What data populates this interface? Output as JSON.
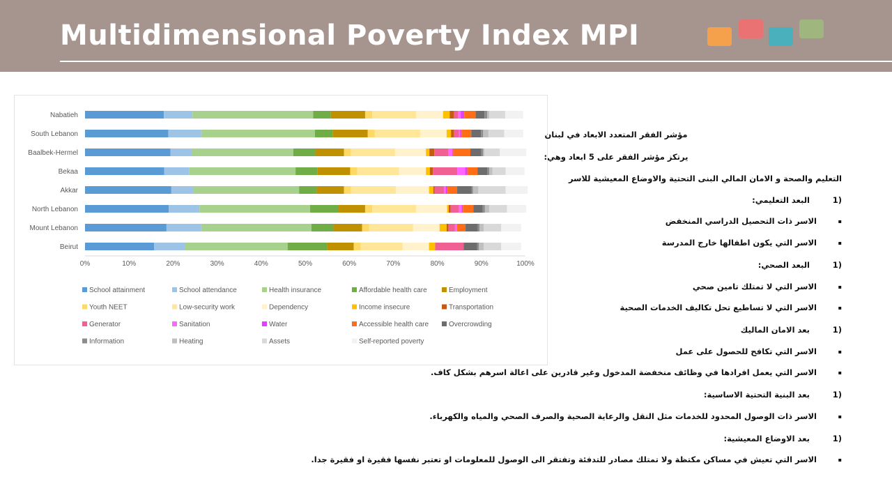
{
  "header": {
    "title": "Multidimensional Poverty Index MPI",
    "squares": [
      "#f5a04a",
      "#ea7273",
      "#49b0bc",
      "#9fb77e"
    ]
  },
  "chart_data": {
    "type": "bar",
    "orientation": "horizontal",
    "stacked": true,
    "categories": [
      "Nabatieh",
      "South Lebanon",
      "Baalbek-Hermel",
      "Bekaa",
      "Akkar",
      "North Lebanon",
      "Mount Lebanon",
      "Beirut"
    ],
    "xlim": [
      0,
      100
    ],
    "xticks": [
      "0%",
      "10%",
      "20%",
      "30%",
      "40%",
      "50%",
      "60%",
      "70%",
      "80%",
      "90%",
      "100%"
    ],
    "grid": false,
    "legend_position": "bottom",
    "series": [
      {
        "name": "School attainment",
        "color": "#5b9bd5",
        "values": [
          17.9,
          18.9,
          19.4,
          18.0,
          19.6,
          19.0,
          18.5,
          15.7
        ]
      },
      {
        "name": "School attendance",
        "color": "#9dc3e6",
        "values": [
          6.5,
          7.5,
          4.8,
          5.6,
          5.0,
          7.0,
          7.9,
          7.0
        ]
      },
      {
        "name": "Health insurance",
        "color": "#a9d18e",
        "values": [
          27.4,
          25.8,
          23.1,
          24.2,
          24.0,
          25.1,
          25.0,
          23.3
        ]
      },
      {
        "name": "Affordable health care",
        "color": "#70ad47",
        "values": [
          4.0,
          4.0,
          5.0,
          5.0,
          4.0,
          6.5,
          5.0,
          9.0
        ]
      },
      {
        "name": "Employment",
        "color": "#bf9000",
        "values": [
          7.8,
          8.0,
          6.5,
          7.4,
          6.2,
          6.0,
          6.5,
          6.0
        ]
      },
      {
        "name": "Youth NEET",
        "color": "#ffd966",
        "values": [
          1.6,
          1.6,
          1.6,
          1.6,
          1.6,
          1.6,
          1.6,
          1.6
        ]
      },
      {
        "name": "Low-security work",
        "color": "#ffe699",
        "values": [
          10.0,
          10.3,
          10.0,
          9.5,
          10.2,
          10.0,
          10.0,
          9.5
        ]
      },
      {
        "name": "Dependency",
        "color": "#fff2cc",
        "values": [
          6.1,
          6.0,
          7.0,
          6.1,
          7.5,
          7.0,
          6.0,
          6.0
        ]
      },
      {
        "name": "Income insecure",
        "color": "#ffc000",
        "values": [
          1.5,
          1.0,
          0.8,
          0.9,
          1.0,
          0.4,
          1.6,
          1.4
        ]
      },
      {
        "name": "Transportation",
        "color": "#c55a11",
        "values": [
          0.9,
          0.6,
          1.1,
          0.7,
          0.3,
          0.4,
          0.4,
          0.0
        ]
      },
      {
        "name": "Generator",
        "color": "#f06092",
        "values": [
          1.0,
          1.2,
          3.2,
          5.5,
          2.1,
          1.9,
          1.5,
          6.5
        ]
      },
      {
        "name": "Sanitation",
        "color": "#ff66ff",
        "values": [
          0.6,
          0.3,
          0.9,
          1.8,
          0.4,
          0.6,
          0.5,
          0.0
        ]
      },
      {
        "name": "Water",
        "color": "#e040fb",
        "values": [
          0.8,
          0.3,
          0.2,
          0.5,
          0.4,
          0.3,
          0.0,
          0.0
        ]
      },
      {
        "name": "Accessible health care",
        "color": "#ff6d17",
        "values": [
          2.6,
          2.2,
          3.9,
          2.3,
          2.2,
          2.4,
          1.9,
          0.0
        ]
      },
      {
        "name": "Overcrowding",
        "color": "#6d6d6d",
        "values": [
          2.0,
          2.2,
          2.5,
          2.2,
          3.3,
          2.1,
          2.8,
          3.0
        ]
      },
      {
        "name": "Information",
        "color": "#8c8c8c",
        "values": [
          0.6,
          0.5,
          0.4,
          0.5,
          0.3,
          0.5,
          0.4,
          0.4
        ]
      },
      {
        "name": "Heating",
        "color": "#bfbfbf",
        "values": [
          0.5,
          1.2,
          0.3,
          0.7,
          1.2,
          1.0,
          0.9,
          1.1
        ]
      },
      {
        "name": "Assets",
        "color": "#d9d9d9",
        "values": [
          3.6,
          3.6,
          3.5,
          3.0,
          6.2,
          4.0,
          4.0,
          4.0
        ]
      },
      {
        "name": "Self-reported poverty",
        "color": "#f2f2f2",
        "values": [
          4.1,
          4.3,
          6.0,
          4.3,
          5.0,
          4.4,
          4.5,
          4.5
        ]
      }
    ]
  },
  "text_panel": {
    "lines": [
      {
        "kind": "center",
        "text": "مؤشر الفقر المتعدد الابعاد في لبنان"
      },
      {
        "kind": "center",
        "text": "يرتكز مؤشر الفقر على 5 ابعاد وهي:"
      },
      {
        "kind": "plain",
        "text": "التعليم والصحة و الامان المالي البنى التحتية والاوضاع المعيشية للاسر"
      },
      {
        "kind": "numbered",
        "marker": "1)",
        "text": "البعد التعليمي:"
      },
      {
        "kind": "bullet",
        "marker": "▪",
        "text": "الاسر ذات التحصيل الدراسي المنخفض"
      },
      {
        "kind": "bullet",
        "marker": "▪",
        "text": "الاسر التي يكون اطفالها خارج المدرسة"
      },
      {
        "kind": "numbered",
        "marker": "1)",
        "text": "البعد الصحي:"
      },
      {
        "kind": "bullet",
        "marker": "▪",
        "text": "الاسر التي لا تمتلك تامين صحي"
      },
      {
        "kind": "bullet",
        "marker": "▪",
        "text": "الاسر التي لا تساطيع تحل تكاليف الخدمات الصحية"
      },
      {
        "kind": "numbered",
        "marker": "1)",
        "text": "بعد الامان الماليك"
      },
      {
        "kind": "bullet",
        "marker": "▪",
        "text": "الاسر التي تكافح للحصول على عمل"
      },
      {
        "kind": "bullet",
        "marker": "▪",
        "text": "الاسر التي يعمل افرادها في وظائف منخفضة المدخول وغير قادرين على اعالة اسرهم بشكل كاف."
      },
      {
        "kind": "numbered",
        "marker": "1)",
        "text": "بعد البنية التحتية الاساسية:"
      },
      {
        "kind": "bullet",
        "marker": "▪",
        "text": "الاسر ذات الوصول المحدود للخدمات مثل النقل والرعاية الصحية والصرف الصحي والمياه والكهرباء."
      },
      {
        "kind": "numbered",
        "marker": "1)",
        "text": "بعد الاوضاع المعيشية:"
      },
      {
        "kind": "bullet",
        "marker": "▪",
        "text": "الاسر التي تعيش في مساكن مكتظة ولا تمتلك مصادر للتدفئة وتفتقر الى الوصول للمعلومات او تعتبر نفسها فقيرة او فقيرة جدا."
      }
    ]
  }
}
